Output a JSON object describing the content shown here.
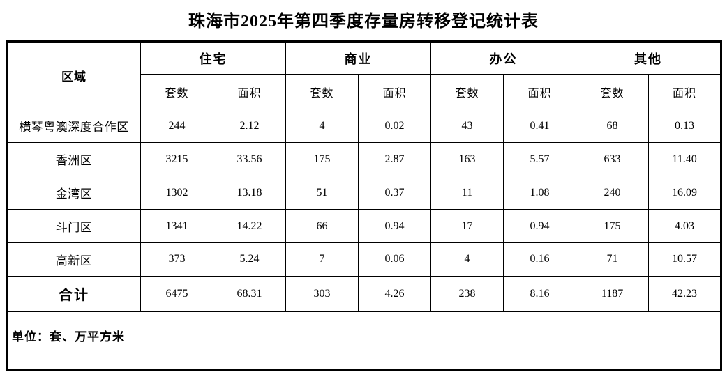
{
  "title": "珠海市2025年第四季度存量房转移登记统计表",
  "table": {
    "region_header": "区域",
    "groups": [
      {
        "label": "住宅"
      },
      {
        "label": "商业"
      },
      {
        "label": "办公"
      },
      {
        "label": "其他"
      }
    ],
    "sub_headers": {
      "units": "套数",
      "area": "面积"
    },
    "rows": [
      {
        "region": "横琴粤澳深度合作区",
        "values": [
          "244",
          "2.12",
          "4",
          "0.02",
          "43",
          "0.41",
          "68",
          "0.13"
        ]
      },
      {
        "region": "香洲区",
        "values": [
          "3215",
          "33.56",
          "175",
          "2.87",
          "163",
          "5.57",
          "633",
          "11.40"
        ]
      },
      {
        "region": "金湾区",
        "values": [
          "1302",
          "13.18",
          "51",
          "0.37",
          "11",
          "1.08",
          "240",
          "16.09"
        ]
      },
      {
        "region": "斗门区",
        "values": [
          "1341",
          "14.22",
          "66",
          "0.94",
          "17",
          "0.94",
          "175",
          "4.03"
        ]
      },
      {
        "region": "高新区",
        "values": [
          "373",
          "5.24",
          "7",
          "0.06",
          "4",
          "0.16",
          "71",
          "10.57"
        ]
      }
    ],
    "total_row": {
      "region": "合计",
      "values": [
        "6475",
        "68.31",
        "303",
        "4.26",
        "238",
        "8.16",
        "1187",
        "42.23"
      ]
    },
    "footer_note": "单位：套、万平方米",
    "border_color": "#000000"
  }
}
